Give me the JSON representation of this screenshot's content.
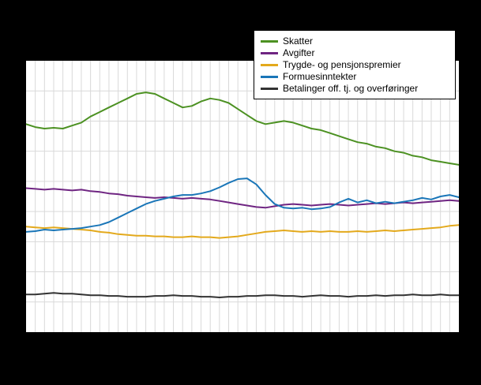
{
  "figure": {
    "background": "#000000",
    "plot_background": "#ffffff",
    "plot_border_color": "#000000",
    "grid_color": "#d9d9d9",
    "legend_background": "#ffffff",
    "legend_border_color": "#000000"
  },
  "chart_data": {
    "type": "line",
    "title": "",
    "xlabel": "",
    "ylabel": "",
    "axis_tick_labels_visible": false,
    "grid": true,
    "legend_position": "top-right",
    "ylim": [
      0,
      18
    ],
    "y_gridline_step": 2,
    "x_points": 48,
    "series": [
      {
        "name": "Skatter",
        "color": "#4c9122",
        "values": [
          13.8,
          13.6,
          13.5,
          13.55,
          13.5,
          13.7,
          13.9,
          14.3,
          14.6,
          14.9,
          15.2,
          15.5,
          15.8,
          15.9,
          15.8,
          15.5,
          15.2,
          14.9,
          15.0,
          15.3,
          15.5,
          15.4,
          15.2,
          14.8,
          14.4,
          14.0,
          13.8,
          13.9,
          14.0,
          13.9,
          13.7,
          13.5,
          13.4,
          13.2,
          13.0,
          12.8,
          12.6,
          12.5,
          12.3,
          12.2,
          12.0,
          11.9,
          11.7,
          11.6,
          11.4,
          11.3,
          11.2,
          11.1
        ]
      },
      {
        "name": "Avgifter",
        "color": "#6f2582",
        "values": [
          9.55,
          9.5,
          9.45,
          9.5,
          9.45,
          9.4,
          9.45,
          9.35,
          9.3,
          9.2,
          9.15,
          9.05,
          9.0,
          8.95,
          8.9,
          8.95,
          8.9,
          8.85,
          8.9,
          8.85,
          8.8,
          8.7,
          8.6,
          8.5,
          8.4,
          8.3,
          8.25,
          8.35,
          8.45,
          8.5,
          8.45,
          8.4,
          8.45,
          8.5,
          8.45,
          8.4,
          8.45,
          8.5,
          8.55,
          8.5,
          8.55,
          8.6,
          8.55,
          8.6,
          8.65,
          8.7,
          8.75,
          8.7
        ]
      },
      {
        "name": "Trygde- og pensjonspremier",
        "color": "#e3a91c",
        "values": [
          7.0,
          6.95,
          6.9,
          6.95,
          6.9,
          6.85,
          6.8,
          6.75,
          6.65,
          6.6,
          6.5,
          6.45,
          6.4,
          6.4,
          6.35,
          6.35,
          6.3,
          6.3,
          6.35,
          6.3,
          6.3,
          6.25,
          6.3,
          6.35,
          6.45,
          6.55,
          6.65,
          6.7,
          6.75,
          6.7,
          6.65,
          6.7,
          6.65,
          6.7,
          6.65,
          6.65,
          6.7,
          6.65,
          6.7,
          6.75,
          6.7,
          6.75,
          6.8,
          6.85,
          6.9,
          6.95,
          7.05,
          7.1
        ]
      },
      {
        "name": "Formuesinntekter",
        "color": "#1a76b8",
        "values": [
          6.65,
          6.7,
          6.8,
          6.75,
          6.8,
          6.85,
          6.9,
          7.0,
          7.1,
          7.3,
          7.6,
          7.9,
          8.2,
          8.5,
          8.7,
          8.85,
          9.0,
          9.1,
          9.1,
          9.2,
          9.35,
          9.6,
          9.9,
          10.15,
          10.2,
          9.8,
          9.1,
          8.5,
          8.25,
          8.2,
          8.25,
          8.15,
          8.2,
          8.3,
          8.6,
          8.85,
          8.6,
          8.75,
          8.55,
          8.65,
          8.55,
          8.65,
          8.75,
          8.9,
          8.8,
          9.0,
          9.1,
          8.95
        ]
      },
      {
        "name": "Betalinger off. tj. og overføringer",
        "color": "#333333",
        "values": [
          2.5,
          2.5,
          2.55,
          2.6,
          2.55,
          2.55,
          2.5,
          2.45,
          2.45,
          2.4,
          2.4,
          2.35,
          2.35,
          2.35,
          2.4,
          2.4,
          2.45,
          2.4,
          2.4,
          2.35,
          2.35,
          2.3,
          2.35,
          2.35,
          2.4,
          2.4,
          2.45,
          2.45,
          2.4,
          2.4,
          2.35,
          2.4,
          2.45,
          2.4,
          2.4,
          2.35,
          2.4,
          2.4,
          2.45,
          2.4,
          2.45,
          2.45,
          2.5,
          2.45,
          2.45,
          2.5,
          2.45,
          2.45
        ]
      }
    ]
  }
}
